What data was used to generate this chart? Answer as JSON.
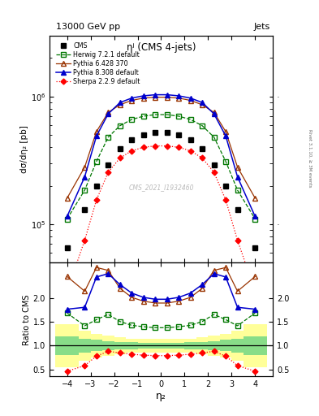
{
  "title_top": "13000 GeV pp",
  "title_right": "Jets",
  "plot_title": "ηʲ (CMS 4-jets)",
  "watermark": "CMS_2021_I1932460",
  "rivet_text": "Rivet 3.1.10, ≥ 3M events",
  "xlabel": "η₂",
  "ylabel": "dσ/dη₂ [pb]",
  "ratio_ylabel": "Ratio to CMS",
  "ylim_main": [
    50000,
    3000000
  ],
  "ylim_ratio": [
    0.35,
    2.75
  ],
  "eta_bins": [
    -4.5,
    -3.5,
    -3.0,
    -2.5,
    -2.0,
    -1.5,
    -1.0,
    -0.5,
    0.0,
    0.5,
    1.0,
    1.5,
    2.0,
    2.5,
    3.0,
    3.5,
    4.5
  ],
  "eta_centers": [
    -4.0,
    -3.25,
    -2.75,
    -2.25,
    -1.75,
    -1.25,
    -0.75,
    -0.25,
    0.25,
    0.75,
    1.25,
    1.75,
    2.25,
    2.75,
    3.25,
    4.0
  ],
  "cms_data": [
    65000,
    130000,
    200000,
    290000,
    390000,
    460000,
    500000,
    520000,
    520000,
    500000,
    460000,
    390000,
    290000,
    200000,
    130000,
    65000
  ],
  "herwig_data": [
    110000,
    185000,
    310000,
    480000,
    590000,
    660000,
    700000,
    720000,
    720000,
    700000,
    660000,
    590000,
    480000,
    310000,
    185000,
    110000
  ],
  "pythia6_data": [
    160000,
    280000,
    530000,
    750000,
    860000,
    930000,
    970000,
    985000,
    985000,
    970000,
    930000,
    860000,
    750000,
    530000,
    280000,
    160000
  ],
  "pythia8_data": [
    115000,
    235000,
    490000,
    730000,
    895000,
    970000,
    1010000,
    1030000,
    1030000,
    1010000,
    970000,
    895000,
    730000,
    490000,
    235000,
    115000
  ],
  "sherpa_data": [
    30000,
    75000,
    155000,
    255000,
    330000,
    375000,
    400000,
    410000,
    410000,
    400000,
    375000,
    330000,
    255000,
    155000,
    75000,
    30000
  ],
  "herwig_ratio": [
    1.69,
    1.42,
    1.55,
    1.66,
    1.51,
    1.43,
    1.4,
    1.38,
    1.38,
    1.4,
    1.43,
    1.51,
    1.66,
    1.55,
    1.42,
    1.69
  ],
  "pythia6_ratio": [
    2.46,
    2.15,
    2.65,
    2.59,
    2.21,
    2.02,
    1.94,
    1.9,
    1.9,
    1.94,
    2.02,
    2.21,
    2.59,
    2.65,
    2.15,
    2.46
  ],
  "pythia8_ratio": [
    1.77,
    1.81,
    2.45,
    2.52,
    2.29,
    2.11,
    2.02,
    1.98,
    1.98,
    2.02,
    2.11,
    2.29,
    2.52,
    2.45,
    1.81,
    1.77
  ],
  "sherpa_ratio": [
    0.46,
    0.58,
    0.78,
    0.88,
    0.85,
    0.82,
    0.8,
    0.79,
    0.79,
    0.8,
    0.82,
    0.85,
    0.88,
    0.78,
    0.58,
    0.46
  ],
  "cms_syst_inner": [
    0.2,
    0.15,
    0.12,
    0.1,
    0.08,
    0.07,
    0.06,
    0.06,
    0.06,
    0.06,
    0.07,
    0.08,
    0.1,
    0.12,
    0.15,
    0.2
  ],
  "cms_syst_outer": [
    0.45,
    0.32,
    0.25,
    0.22,
    0.18,
    0.15,
    0.14,
    0.14,
    0.14,
    0.14,
    0.15,
    0.18,
    0.22,
    0.25,
    0.32,
    0.45
  ],
  "color_cms": "#000000",
  "color_herwig": "#007700",
  "color_pythia6": "#993300",
  "color_pythia8": "#0000cc",
  "color_sherpa": "#ff0000",
  "color_band_inner": "#88dd88",
  "color_band_outer": "#ffff99",
  "xticks": [
    -4,
    -3,
    -2,
    -1,
    0,
    1,
    2,
    3,
    4
  ],
  "ratio_yticks": [
    0.5,
    1.0,
    1.5,
    2.0
  ],
  "main_yticks": [
    100000,
    1000000
  ]
}
